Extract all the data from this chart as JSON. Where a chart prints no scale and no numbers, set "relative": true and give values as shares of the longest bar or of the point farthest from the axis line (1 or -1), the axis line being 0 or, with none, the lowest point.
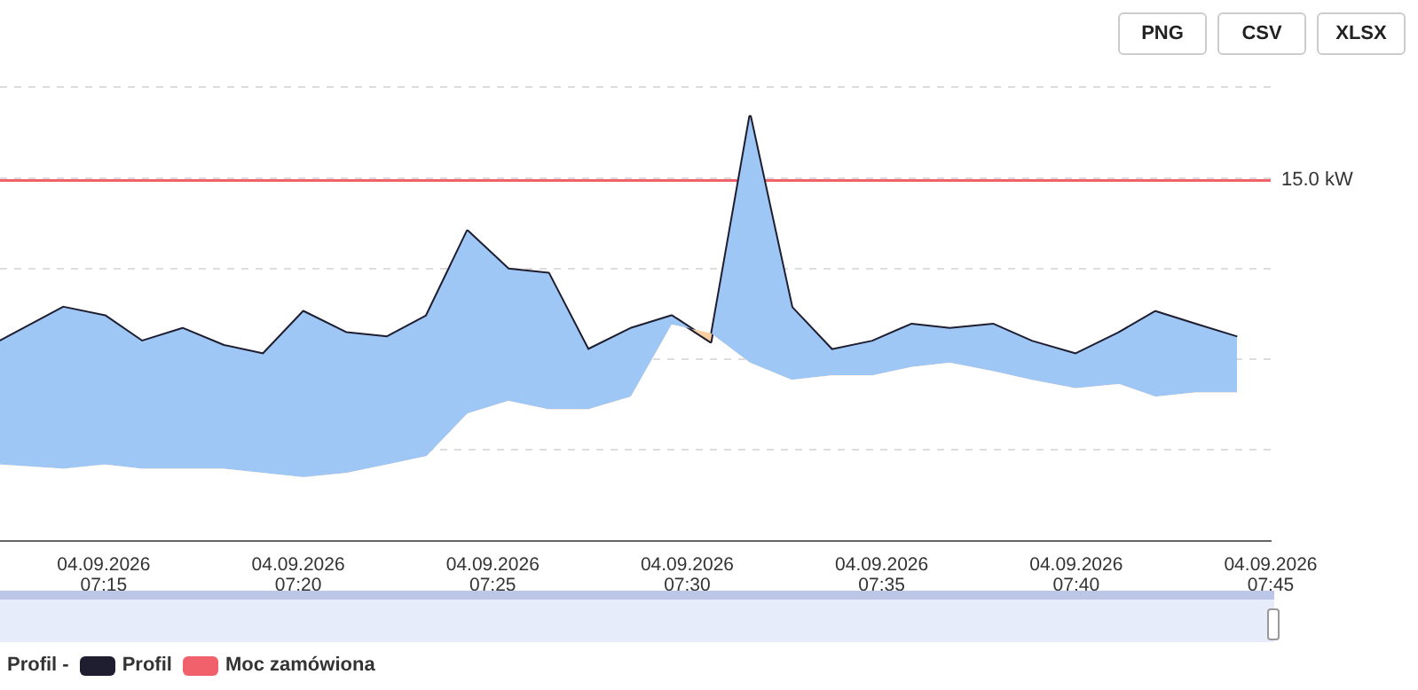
{
  "chart_data": {
    "type": "line",
    "relative": true,
    "legend_title": "Profil -",
    "legend": "bottom",
    "grid": "y",
    "marker": "none",
    "x": [
      "2026-09-04T07:12:20",
      "2026-09-04T07:13:58",
      "2026-09-04T07:15:02",
      "2026-09-04T07:15:59",
      "2026-09-04T07:17:02",
      "2026-09-04T07:18:05",
      "2026-09-04T07:19:06",
      "2026-09-04T07:20:08",
      "2026-09-04T07:21:14",
      "2026-09-04T07:22:17",
      "2026-09-04T07:23:18",
      "2026-09-04T07:24:21",
      "2026-09-04T07:25:24",
      "2026-09-04T07:26:26",
      "2026-09-04T07:27:27",
      "2026-09-04T07:28:33",
      "2026-09-04T07:29:36",
      "2026-09-04T07:30:36",
      "2026-09-04T07:31:37",
      "2026-09-04T07:32:41",
      "2026-09-04T07:33:43",
      "2026-09-04T07:34:46",
      "2026-09-04T07:35:46",
      "2026-09-04T07:36:45",
      "2026-09-04T07:37:52",
      "2026-09-04T07:38:51",
      "2026-09-04T07:39:59",
      "2026-09-04T07:41:06",
      "2026-09-04T07:42:02",
      "2026-09-04T07:43:04",
      "2026-09-04T07:44:08"
    ],
    "xlim": [
      "2026-09-04T07:12:20",
      "2026-09-04T07:45"
    ],
    "xticks": [
      {
        "value": "2026-09-04T07:15",
        "label": "04.09.2026 07:15"
      },
      {
        "value": "2026-09-04T07:20",
        "label": "04.09.2026 07:20"
      },
      {
        "value": "2026-09-04T07:25",
        "label": "04.09.2026 07:25"
      },
      {
        "value": "2026-09-04T07:30",
        "label": "04.09.2026 07:30"
      },
      {
        "value": "2026-09-04T07:35",
        "label": "04.09.2026 07:35"
      },
      {
        "value": "2026-09-04T07:40",
        "label": "04.09.2026 07:40"
      },
      {
        "value": "2026-09-04T07:45",
        "label": "04.09.2026 07:45"
      }
    ],
    "series": [
      {
        "name": "Profil",
        "color": "#1e1e30",
        "values": [
          0.47,
          0.55,
          0.53,
          0.47,
          0.5,
          0.46,
          0.44,
          0.54,
          0.49,
          0.48,
          0.53,
          0.73,
          0.64,
          0.63,
          0.45,
          0.5,
          0.53,
          0.47,
          1,
          0.55,
          0.45,
          0.47,
          0.51,
          0.5,
          0.51,
          0.47,
          0.44,
          0.49,
          0.54,
          0.51,
          0.48
        ],
        "lower": [
          0.18,
          0.17,
          0.18,
          0.17,
          0.17,
          0.17,
          0.16,
          0.15,
          0.16,
          0.18,
          0.2,
          0.3,
          0.33,
          0.31,
          0.31,
          0.34,
          0.51,
          0.49,
          0.42,
          0.38,
          0.39,
          0.39,
          0.41,
          0.42,
          0.4,
          0.38,
          0.36,
          0.37,
          0.34,
          0.35,
          0.35
        ],
        "upper": [
          0.47,
          0.55,
          0.53,
          0.47,
          0.5,
          0.46,
          0.44,
          0.54,
          0.49,
          0.48,
          0.53,
          0.73,
          0.64,
          0.63,
          0.45,
          0.5,
          0.53,
          0.47,
          1,
          0.55,
          0.45,
          0.47,
          0.51,
          0.5,
          0.51,
          0.47,
          0.44,
          0.49,
          0.54,
          0.51,
          0.48
        ]
      },
      {
        "name": "Moc zamówiona",
        "color": "#f0616b",
        "type": "line",
        "x": [
          "2026-09-04T07:12:20",
          "2026-09-04T07:45"
        ],
        "values": [
          0.85,
          0.85
        ]
      }
    ],
    "annotations": [
      {
        "text": "15.0 kW",
        "x": "2026-09-04T07:45",
        "y": 0.85
      },
      "PNG",
      "CSV",
      "XLSX"
    ]
  }
}
